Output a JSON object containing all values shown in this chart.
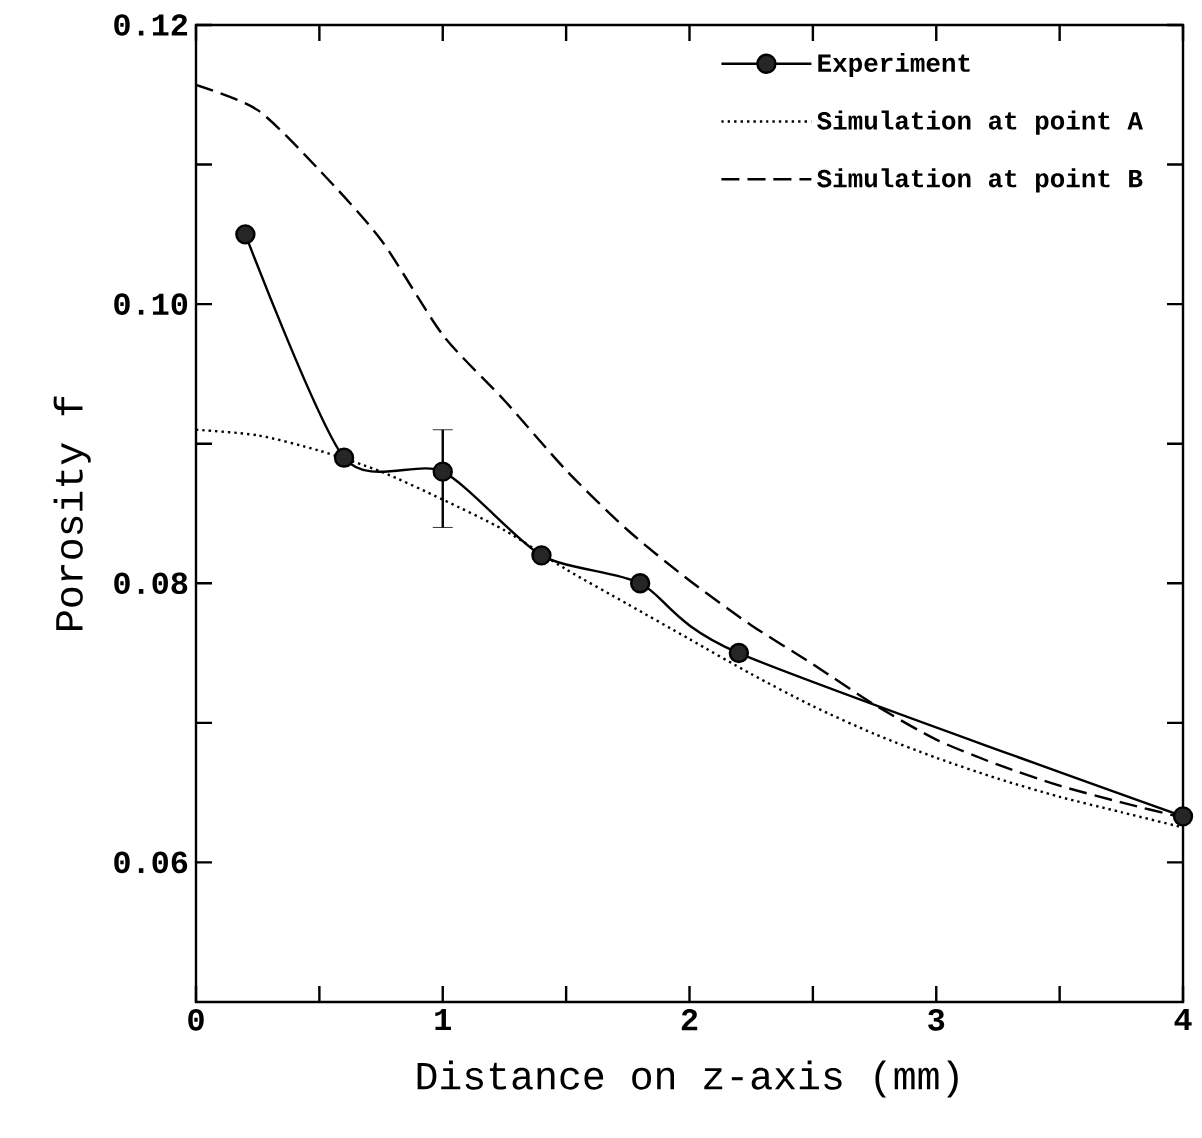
{
  "chart_data": {
    "type": "line",
    "xlabel": "Distance on z-axis (mm)",
    "ylabel": "Porosity  f",
    "xlim": [
      0,
      4
    ],
    "ylim": [
      0.05,
      0.12
    ],
    "xticks": [
      0,
      1,
      2,
      3,
      4,
      {
        "value": 0.5,
        "label": null
      },
      {
        "value": 1.5,
        "label": null
      },
      {
        "value": 2.5,
        "label": null
      },
      {
        "value": 3.5,
        "label": null
      }
    ],
    "yticks": [
      0.06,
      0.08,
      {
        "value": 0.1,
        "label": "0.10"
      },
      0.12,
      {
        "value": 0.07,
        "label": null
      },
      {
        "value": 0.09,
        "label": null
      },
      {
        "value": 0.11,
        "label": null
      }
    ],
    "legend": "top right",
    "series": [
      {
        "name": "Experiment",
        "color": "#000000",
        "marker": "circle",
        "line_style": "solid",
        "x": [
          0.2,
          0.6,
          1.0,
          1.4,
          1.8,
          2.2,
          4.0
        ],
        "values": [
          0.105,
          0.089,
          0.088,
          0.082,
          0.08,
          0.075,
          0.0633
        ],
        "errors": [
          null,
          null,
          [
            0.084,
            0.091
          ],
          null,
          null,
          null,
          null
        ]
      },
      {
        "name": "Simulation at point A",
        "color": "#000000",
        "marker": "none",
        "line_style": "dotted",
        "x": [
          0,
          0.25,
          0.5,
          0.75,
          1,
          1.25,
          1.5,
          1.75,
          2,
          2.25,
          2.5,
          2.75,
          3,
          3.25,
          3.5,
          3.75,
          4
        ],
        "values": [
          0.091,
          0.0906,
          0.0895,
          0.088,
          0.086,
          0.0838,
          0.081,
          0.0785,
          0.076,
          0.0735,
          0.0712,
          0.0692,
          0.0675,
          0.066,
          0.0647,
          0.0636,
          0.0625
        ]
      },
      {
        "name": "Simulation at point B",
        "color": "#000000",
        "marker": "none",
        "line_style": "dashed",
        "x": [
          0,
          0.25,
          0.5,
          0.75,
          1,
          1.25,
          1.5,
          1.75,
          2,
          2.25,
          2.5,
          2.75,
          3,
          3.25,
          3.5,
          3.75,
          4
        ],
        "values": [
          0.1157,
          0.1139,
          0.1096,
          0.1046,
          0.0978,
          0.0931,
          0.0881,
          0.0838,
          0.0802,
          0.077,
          0.0742,
          0.0713,
          0.0688,
          0.067,
          0.0655,
          0.0643,
          0.0632
        ]
      }
    ]
  }
}
